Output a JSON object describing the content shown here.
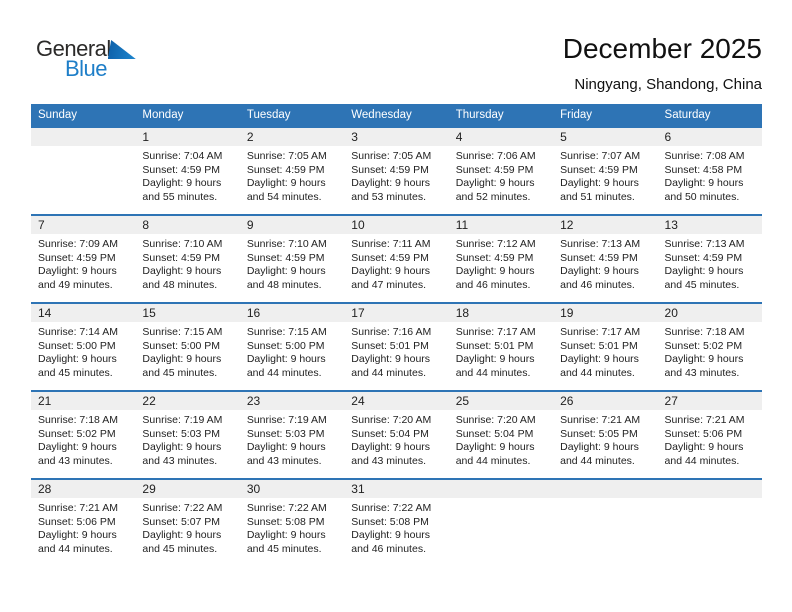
{
  "colors": {
    "header_blue": "#2E74B5",
    "band_gray": "#EFEFEF",
    "logo_blue": "#1E7EC8",
    "logo_dark": "#2B2A29"
  },
  "logo": {
    "line1": "General",
    "line2": "Blue",
    "triangle_icon": "blue-triangle"
  },
  "header": {
    "title": "December 2025",
    "subtitle": "Ningyang, Shandong, China"
  },
  "calendar": {
    "weekdays": [
      "Sunday",
      "Monday",
      "Tuesday",
      "Wednesday",
      "Thursday",
      "Friday",
      "Saturday"
    ],
    "weeks": [
      [
        null,
        {
          "day": "1",
          "sunrise": "Sunrise: 7:04 AM",
          "sunset": "Sunset: 4:59 PM",
          "daylight_line1": "Daylight: 9 hours",
          "daylight_line2": "and 55 minutes."
        },
        {
          "day": "2",
          "sunrise": "Sunrise: 7:05 AM",
          "sunset": "Sunset: 4:59 PM",
          "daylight_line1": "Daylight: 9 hours",
          "daylight_line2": "and 54 minutes."
        },
        {
          "day": "3",
          "sunrise": "Sunrise: 7:05 AM",
          "sunset": "Sunset: 4:59 PM",
          "daylight_line1": "Daylight: 9 hours",
          "daylight_line2": "and 53 minutes."
        },
        {
          "day": "4",
          "sunrise": "Sunrise: 7:06 AM",
          "sunset": "Sunset: 4:59 PM",
          "daylight_line1": "Daylight: 9 hours",
          "daylight_line2": "and 52 minutes."
        },
        {
          "day": "5",
          "sunrise": "Sunrise: 7:07 AM",
          "sunset": "Sunset: 4:59 PM",
          "daylight_line1": "Daylight: 9 hours",
          "daylight_line2": "and 51 minutes."
        },
        {
          "day": "6",
          "sunrise": "Sunrise: 7:08 AM",
          "sunset": "Sunset: 4:58 PM",
          "daylight_line1": "Daylight: 9 hours",
          "daylight_line2": "and 50 minutes."
        }
      ],
      [
        {
          "day": "7",
          "sunrise": "Sunrise: 7:09 AM",
          "sunset": "Sunset: 4:59 PM",
          "daylight_line1": "Daylight: 9 hours",
          "daylight_line2": "and 49 minutes."
        },
        {
          "day": "8",
          "sunrise": "Sunrise: 7:10 AM",
          "sunset": "Sunset: 4:59 PM",
          "daylight_line1": "Daylight: 9 hours",
          "daylight_line2": "and 48 minutes."
        },
        {
          "day": "9",
          "sunrise": "Sunrise: 7:10 AM",
          "sunset": "Sunset: 4:59 PM",
          "daylight_line1": "Daylight: 9 hours",
          "daylight_line2": "and 48 minutes."
        },
        {
          "day": "10",
          "sunrise": "Sunrise: 7:11 AM",
          "sunset": "Sunset: 4:59 PM",
          "daylight_line1": "Daylight: 9 hours",
          "daylight_line2": "and 47 minutes."
        },
        {
          "day": "11",
          "sunrise": "Sunrise: 7:12 AM",
          "sunset": "Sunset: 4:59 PM",
          "daylight_line1": "Daylight: 9 hours",
          "daylight_line2": "and 46 minutes."
        },
        {
          "day": "12",
          "sunrise": "Sunrise: 7:13 AM",
          "sunset": "Sunset: 4:59 PM",
          "daylight_line1": "Daylight: 9 hours",
          "daylight_line2": "and 46 minutes."
        },
        {
          "day": "13",
          "sunrise": "Sunrise: 7:13 AM",
          "sunset": "Sunset: 4:59 PM",
          "daylight_line1": "Daylight: 9 hours",
          "daylight_line2": "and 45 minutes."
        }
      ],
      [
        {
          "day": "14",
          "sunrise": "Sunrise: 7:14 AM",
          "sunset": "Sunset: 5:00 PM",
          "daylight_line1": "Daylight: 9 hours",
          "daylight_line2": "and 45 minutes."
        },
        {
          "day": "15",
          "sunrise": "Sunrise: 7:15 AM",
          "sunset": "Sunset: 5:00 PM",
          "daylight_line1": "Daylight: 9 hours",
          "daylight_line2": "and 45 minutes."
        },
        {
          "day": "16",
          "sunrise": "Sunrise: 7:15 AM",
          "sunset": "Sunset: 5:00 PM",
          "daylight_line1": "Daylight: 9 hours",
          "daylight_line2": "and 44 minutes."
        },
        {
          "day": "17",
          "sunrise": "Sunrise: 7:16 AM",
          "sunset": "Sunset: 5:01 PM",
          "daylight_line1": "Daylight: 9 hours",
          "daylight_line2": "and 44 minutes."
        },
        {
          "day": "18",
          "sunrise": "Sunrise: 7:17 AM",
          "sunset": "Sunset: 5:01 PM",
          "daylight_line1": "Daylight: 9 hours",
          "daylight_line2": "and 44 minutes."
        },
        {
          "day": "19",
          "sunrise": "Sunrise: 7:17 AM",
          "sunset": "Sunset: 5:01 PM",
          "daylight_line1": "Daylight: 9 hours",
          "daylight_line2": "and 44 minutes."
        },
        {
          "day": "20",
          "sunrise": "Sunrise: 7:18 AM",
          "sunset": "Sunset: 5:02 PM",
          "daylight_line1": "Daylight: 9 hours",
          "daylight_line2": "and 43 minutes."
        }
      ],
      [
        {
          "day": "21",
          "sunrise": "Sunrise: 7:18 AM",
          "sunset": "Sunset: 5:02 PM",
          "daylight_line1": "Daylight: 9 hours",
          "daylight_line2": "and 43 minutes."
        },
        {
          "day": "22",
          "sunrise": "Sunrise: 7:19 AM",
          "sunset": "Sunset: 5:03 PM",
          "daylight_line1": "Daylight: 9 hours",
          "daylight_line2": "and 43 minutes."
        },
        {
          "day": "23",
          "sunrise": "Sunrise: 7:19 AM",
          "sunset": "Sunset: 5:03 PM",
          "daylight_line1": "Daylight: 9 hours",
          "daylight_line2": "and 43 minutes."
        },
        {
          "day": "24",
          "sunrise": "Sunrise: 7:20 AM",
          "sunset": "Sunset: 5:04 PM",
          "daylight_line1": "Daylight: 9 hours",
          "daylight_line2": "and 43 minutes."
        },
        {
          "day": "25",
          "sunrise": "Sunrise: 7:20 AM",
          "sunset": "Sunset: 5:04 PM",
          "daylight_line1": "Daylight: 9 hours",
          "daylight_line2": "and 44 minutes."
        },
        {
          "day": "26",
          "sunrise": "Sunrise: 7:21 AM",
          "sunset": "Sunset: 5:05 PM",
          "daylight_line1": "Daylight: 9 hours",
          "daylight_line2": "and 44 minutes."
        },
        {
          "day": "27",
          "sunrise": "Sunrise: 7:21 AM",
          "sunset": "Sunset: 5:06 PM",
          "daylight_line1": "Daylight: 9 hours",
          "daylight_line2": "and 44 minutes."
        }
      ],
      [
        {
          "day": "28",
          "sunrise": "Sunrise: 7:21 AM",
          "sunset": "Sunset: 5:06 PM",
          "daylight_line1": "Daylight: 9 hours",
          "daylight_line2": "and 44 minutes."
        },
        {
          "day": "29",
          "sunrise": "Sunrise: 7:22 AM",
          "sunset": "Sunset: 5:07 PM",
          "daylight_line1": "Daylight: 9 hours",
          "daylight_line2": "and 45 minutes."
        },
        {
          "day": "30",
          "sunrise": "Sunrise: 7:22 AM",
          "sunset": "Sunset: 5:08 PM",
          "daylight_line1": "Daylight: 9 hours",
          "daylight_line2": "and 45 minutes."
        },
        {
          "day": "31",
          "sunrise": "Sunrise: 7:22 AM",
          "sunset": "Sunset: 5:08 PM",
          "daylight_line1": "Daylight: 9 hours",
          "daylight_line2": "and 46 minutes."
        },
        null,
        null,
        null
      ]
    ]
  }
}
